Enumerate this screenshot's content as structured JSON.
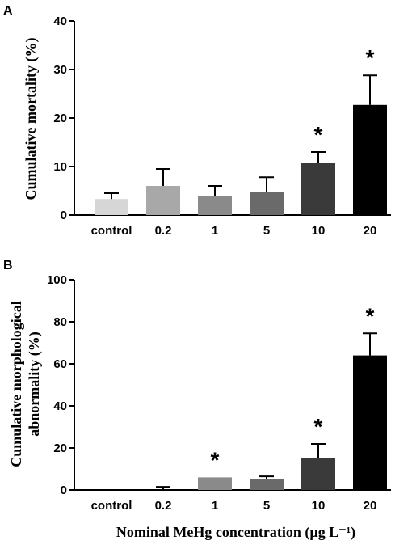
{
  "chart_data": [
    {
      "panel_label": "A",
      "type": "bar",
      "title": "",
      "xlabel": "",
      "ylabel": "Cumulative mortality (%)",
      "ylim": [
        0,
        40
      ],
      "yticks": [
        0,
        10,
        20,
        30,
        40
      ],
      "categories": [
        "control",
        "0.2",
        "1",
        "5",
        "10",
        "20"
      ],
      "values": [
        3.3,
        6.0,
        4.0,
        4.7,
        10.7,
        22.7
      ],
      "error": [
        1.2,
        3.5,
        2.0,
        3.1,
        2.3,
        6.1
      ],
      "significance": [
        "",
        "",
        "",
        "",
        "*",
        "*"
      ],
      "colors": [
        "#d6d6d6",
        "#a8a8a8",
        "#8a8a8a",
        "#6a6a6a",
        "#3a3a3a",
        "#000000"
      ]
    },
    {
      "panel_label": "B",
      "type": "bar",
      "title": "",
      "xlabel": "Nominal MeHg concentration (µg L⁻¹)",
      "ylabel_lines": [
        "Cumulative morphological",
        "abnormality (%)"
      ],
      "ylim": [
        0,
        100
      ],
      "yticks": [
        0,
        20,
        40,
        60,
        80,
        100
      ],
      "categories": [
        "control",
        "0.2",
        "1",
        "5",
        "10",
        "20"
      ],
      "values": [
        0,
        0,
        6.0,
        5.3,
        15.3,
        64.0
      ],
      "error": [
        0,
        1.5,
        0,
        1.2,
        6.6,
        10.5
      ],
      "significance": [
        "",
        "",
        "*",
        "",
        "*",
        "*"
      ],
      "colors": [
        "#d6d6d6",
        "#a8a8a8",
        "#8a8a8a",
        "#6a6a6a",
        "#3a3a3a",
        "#000000"
      ]
    }
  ]
}
